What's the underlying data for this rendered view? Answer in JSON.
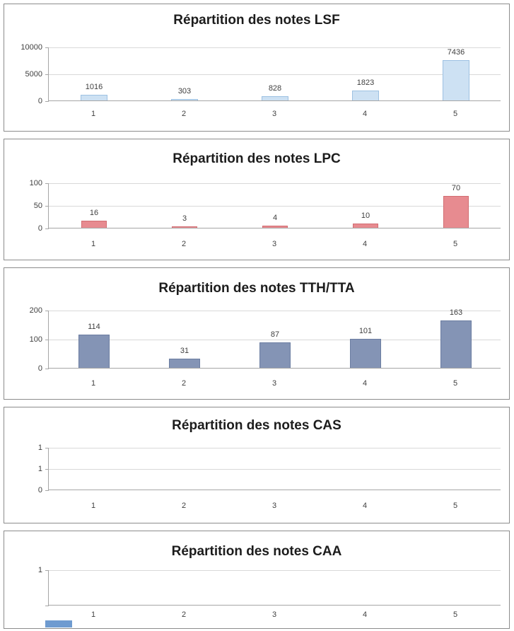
{
  "page": {
    "background": "#ffffff"
  },
  "chart_data": [
    {
      "type": "bar",
      "title": "Répartition des notes LSF",
      "categories": [
        "1",
        "2",
        "3",
        "4",
        "5"
      ],
      "values": [
        1016,
        303,
        828,
        1823,
        7436
      ],
      "data_labels": [
        "1016",
        "303",
        "828",
        "1823",
        "7436"
      ],
      "ylim": [
        0,
        10000
      ],
      "yticks": [
        "10000",
        "5000",
        "0"
      ],
      "bar_fill": "#cde1f3",
      "bar_border": "#9dc1e2",
      "grid": true,
      "legend": "none"
    },
    {
      "type": "bar",
      "title": "Répartition des notes LPC",
      "categories": [
        "1",
        "2",
        "3",
        "4",
        "5"
      ],
      "values": [
        16,
        3,
        4,
        10,
        70
      ],
      "data_labels": [
        "16",
        "3",
        "4",
        "10",
        "70"
      ],
      "ylim": [
        0,
        100
      ],
      "yticks": [
        "100",
        "50",
        "0"
      ],
      "bar_fill": "#e78b90",
      "bar_border": "#d26d72",
      "grid": true,
      "legend": "none"
    },
    {
      "type": "bar",
      "title": "Répartition des notes TTH/TTA",
      "categories": [
        "1",
        "2",
        "3",
        "4",
        "5"
      ],
      "values": [
        114,
        31,
        87,
        101,
        163
      ],
      "data_labels": [
        "114",
        "31",
        "87",
        "101",
        "163"
      ],
      "ylim": [
        0,
        200
      ],
      "yticks": [
        "200",
        "100",
        "0"
      ],
      "bar_fill": "#8494b5",
      "bar_border": "#6b7da1",
      "grid": true,
      "legend": "none"
    },
    {
      "type": "bar",
      "title": "Répartition des notes CAS",
      "categories": [
        "1",
        "2",
        "3",
        "4",
        "5"
      ],
      "values": [
        null,
        null,
        null,
        null,
        null
      ],
      "data_labels": [],
      "ylim": [
        0,
        1
      ],
      "yticks": [
        "1",
        "1",
        "0"
      ],
      "grid": true,
      "legend": "none"
    },
    {
      "type": "bar",
      "title": "Répartition des notes CAA",
      "categories": [
        "1",
        "2",
        "3",
        "4",
        "5"
      ],
      "values": [
        null,
        null,
        null,
        null,
        null
      ],
      "data_labels": [],
      "ylim": [
        0,
        1
      ],
      "yticks": [
        "1",
        ""
      ],
      "grid": true,
      "legend": "none"
    }
  ],
  "partial_chart_fragment": {
    "color": "#6f9bd0"
  }
}
